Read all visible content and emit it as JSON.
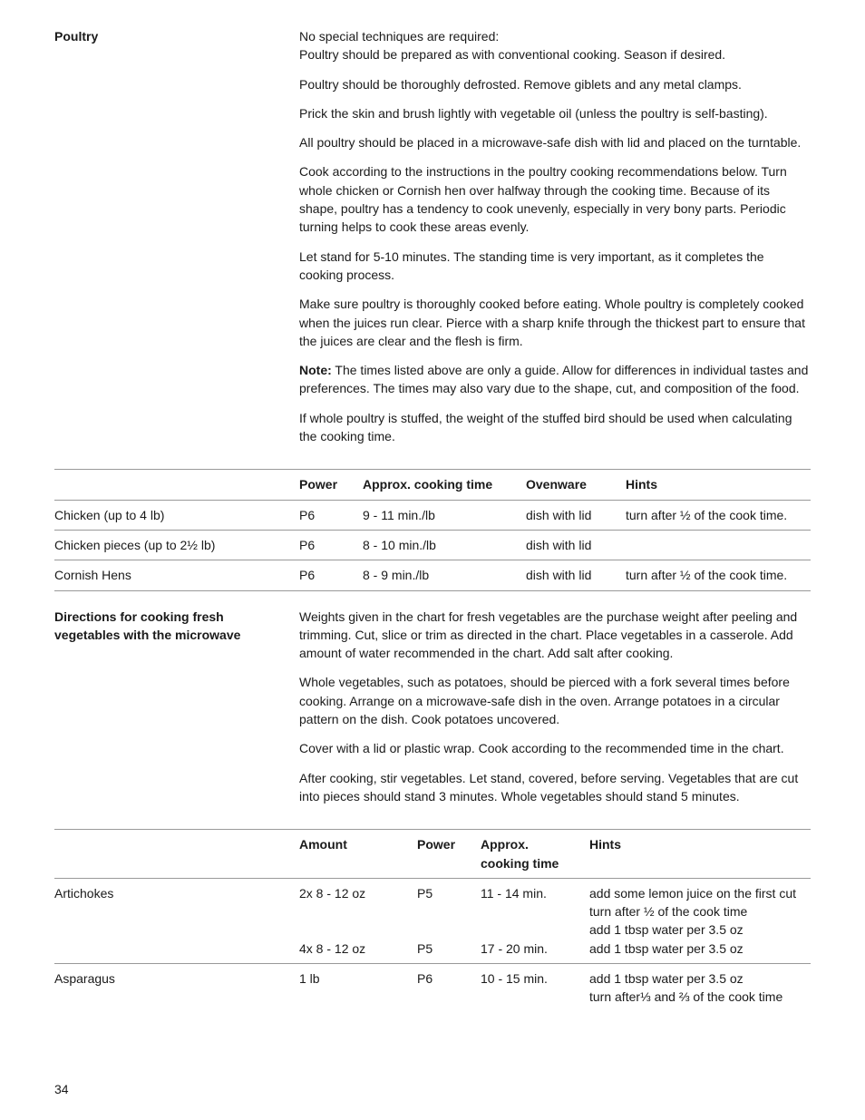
{
  "poultry_section": {
    "heading": "Poultry",
    "paragraphs": [
      {
        "text": "No special techniques are required:\nPoultry should be prepared as with conventional cooking. Season if desired."
      },
      {
        "text": "Poultry should be thoroughly defrosted. Remove giblets and any metal clamps."
      },
      {
        "text": "Prick the skin and brush lightly with vegetable oil (unless the poultry is self-basting)."
      },
      {
        "text": "All poultry should be placed in a microwave-safe dish with lid and placed on the turntable."
      },
      {
        "text": "Cook according to the instructions in the poultry cooking recommendations below. Turn whole chicken or Cornish hen over halfway through the cooking time. Because of its shape, poultry has a tendency to cook unevenly, especially in very bony parts. Periodic turning helps to cook these areas evenly."
      },
      {
        "text": "Let stand for 5-10 minutes. The standing time is very important, as it completes the cooking process."
      },
      {
        "text": "Make sure poultry is thoroughly cooked before eating. Whole poultry is completely cooked when the juices run clear. Pierce with a sharp knife through the thickest part to ensure that the juices are clear and the flesh is firm."
      },
      {
        "lead": "Note:",
        "text": "  The times listed above are only a guide. Allow for differences in individual tastes and preferences. The times may also vary due to the shape, cut, and composition of the food."
      },
      {
        "text": "If whole poultry is stuffed, the weight of the stuffed bird should be used when calculating the cooking time."
      }
    ]
  },
  "poultry_table": {
    "headers": {
      "power": "Power",
      "time": "Approx. cooking time",
      "ovenware": "Ovenware",
      "hints": "Hints"
    },
    "rows": [
      {
        "item": "Chicken (up to 4 lb)",
        "power": "P6",
        "time": "9 - 11 min./lb",
        "ovenware": "dish with lid",
        "hints": "turn after ½ of the cook time."
      },
      {
        "item": "Chicken pieces (up to 2½ lb)",
        "power": "P6",
        "time": "8 - 10 min./lb",
        "ovenware": "dish with lid",
        "hints": ""
      },
      {
        "item": "Cornish Hens",
        "power": "P6",
        "time": "8 - 9 min./lb",
        "ovenware": "dish with lid",
        "hints": "turn after ½ of the cook time."
      }
    ]
  },
  "veg_section": {
    "heading": "Directions for cooking fresh vegetables with the microwave",
    "paragraphs": [
      "Weights given in the chart for fresh vegetables are the purchase weight after peeling and trimming. Cut, slice or trim as directed in the chart. Place vegetables in a casserole. Add amount of water recommended in the chart. Add salt after cooking.",
      "Whole vegetables, such as potatoes, should be pierced with a fork several times before cooking. Arrange on a microwave-safe dish in the oven. Arrange potatoes in a circular pattern on the dish. Cook potatoes uncovered.",
      "Cover with a lid or plastic wrap. Cook according to the recommended time in the chart.",
      "After cooking, stir vegetables. Let stand, covered, before serving. Vegetables that are cut into pieces should stand 3 minutes. Whole vegetables should stand 5 minutes."
    ]
  },
  "veg_table": {
    "headers": {
      "amount": "Amount",
      "power": "Power",
      "time": "Approx.\ncooking time",
      "hints": "Hints"
    },
    "rows": [
      {
        "item": "Artichokes",
        "lines": [
          {
            "amount": "2x 8 - 12 oz",
            "power": "P5",
            "time": "11 - 14 min.",
            "hints": "add some lemon juice on the first cut\nturn after ½ of the cook time\nadd 1 tbsp water per 3.5 oz"
          },
          {
            "amount": "4x 8 - 12 oz",
            "power": "P5",
            "time": "17 - 20 min.",
            "hints": "add 1 tbsp water per 3.5 oz"
          }
        ]
      },
      {
        "item": "Asparagus",
        "lines": [
          {
            "amount": "1 lb",
            "power": "P6",
            "time": "10 - 15 min.",
            "hints": "add 1 tbsp water per 3.5 oz\nturn after⅓ and ⅔ of the cook time"
          }
        ]
      }
    ]
  },
  "page_number": "34"
}
